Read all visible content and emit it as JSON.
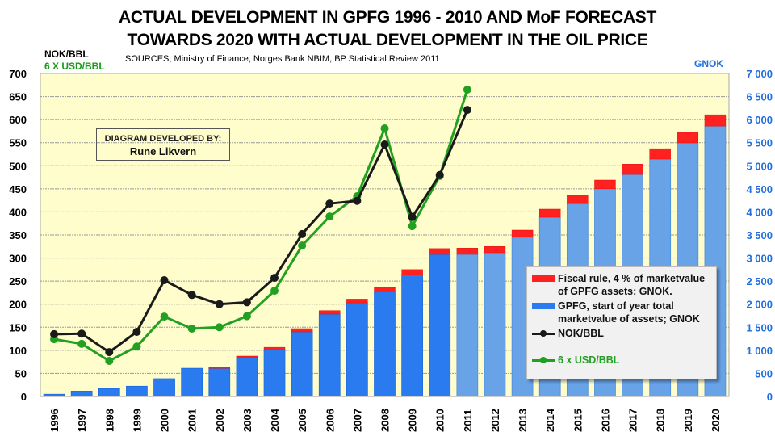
{
  "header": {
    "title_line1": "ACTUAL DEVELOPMENT IN GPFG 1996 - 2010 AND MoF FORECAST",
    "title_line2": "TOWARDS 2020 WITH ACTUAL DEVELOPMENT IN THE OIL PRICE",
    "sources": "SOURCES; Ministry of Finance, Norges Bank NBIM, BP Statistical Review 2011",
    "left_unit_1": "NOK/BBL",
    "left_unit_2": "6 X USD/BBL",
    "right_unit": "GNOK"
  },
  "credit": {
    "line1": "DIAGRAM DEVELOPED BY:",
    "line2": "Rune Likvern"
  },
  "legend": {
    "items": [
      {
        "label": "Fiscal rule, 4 % of marketvalue of GPFG assets; GNOK.",
        "color": "#ff2020"
      },
      {
        "label": "GPFG, start of year total marketvalue of assets; GNOK",
        "color": "#2a7bef"
      },
      {
        "label": "NOK/BBL",
        "color": "#1a1a1a"
      },
      {
        "label": "6 x USD/BBL",
        "color": "#22a022"
      }
    ]
  },
  "colors": {
    "plot_bg": "#fffdcc",
    "bar_actual": "#2a7bef",
    "bar_forecast": "#68a3e8",
    "fiscal": "#ff2020",
    "nok_line": "#1a1a1a",
    "usd_line": "#22a022",
    "right_axis_text": "#1f6fe0"
  },
  "chart_data": {
    "type": "bar",
    "title": "ACTUAL DEVELOPMENT IN GPFG 1996 - 2010 AND MoF FORECAST TOWARDS 2020 WITH ACTUAL DEVELOPMENT IN THE OIL PRICE",
    "categories": [
      "1996",
      "1997",
      "1998",
      "1999",
      "2000",
      "2001",
      "2002",
      "2003",
      "2004",
      "2005",
      "2006",
      "2007",
      "2008",
      "2009",
      "2010",
      "2011",
      "2012",
      "2013",
      "2014",
      "2015",
      "2016",
      "2017",
      "2018",
      "2019",
      "2020"
    ],
    "forecast_from": "2011",
    "left_axis": {
      "label": "NOK/BBL, 6 X USD/BBL",
      "ylim": [
        0,
        700
      ],
      "ticks": [
        0,
        50,
        100,
        150,
        200,
        250,
        300,
        350,
        400,
        450,
        500,
        550,
        600,
        650,
        700
      ]
    },
    "right_axis": {
      "label": "GNOK",
      "ylim": [
        0,
        7000
      ],
      "ticks": [
        "0",
        "500",
        "1 000",
        "1 500",
        "2 000",
        "2 500",
        "3 000",
        "3 500",
        "4 000",
        "4 500",
        "5 000",
        "5 500",
        "6 000",
        "6 500",
        "7 000"
      ]
    },
    "grid": true,
    "legend_position": "bottom-right",
    "series": [
      {
        "name": "GPFG, start of year total marketvalue of assets; GNOK",
        "axis": "right",
        "type": "bar",
        "values": [
          48,
          115,
          172,
          222,
          385,
          610,
          610,
          840,
          1015,
          1400,
          1785,
          2030,
          2275,
          2640,
          3080,
          3080,
          3115,
          3450,
          3885,
          4180,
          4500,
          4810,
          5145,
          5495,
          5860
        ]
      },
      {
        "name": "Fiscal rule, 4 % of marketvalue of GPFG assets; GNOK.",
        "axis": "right",
        "type": "stacked-bar",
        "values": [
          0,
          0,
          0,
          0,
          0,
          0,
          25,
          35,
          50,
          70,
          75,
          80,
          90,
          110,
          125,
          135,
          135,
          155,
          175,
          180,
          190,
          225,
          225,
          230,
          245
        ]
      },
      {
        "name": "NOK/BBL",
        "axis": "left",
        "type": "line",
        "values": [
          135,
          136,
          96,
          140,
          252,
          220,
          200,
          204,
          257,
          352,
          418,
          424,
          546,
          389,
          480,
          621,
          null,
          null,
          null,
          null,
          null,
          null,
          null,
          null,
          null
        ]
      },
      {
        "name": "6 x USD/BBL",
        "axis": "left",
        "type": "line",
        "values": [
          124,
          114,
          77,
          108,
          173,
          147,
          150,
          174,
          229,
          327,
          390,
          434,
          581,
          369,
          478,
          665,
          null,
          null,
          null,
          null,
          null,
          null,
          null,
          null,
          null
        ]
      }
    ]
  }
}
